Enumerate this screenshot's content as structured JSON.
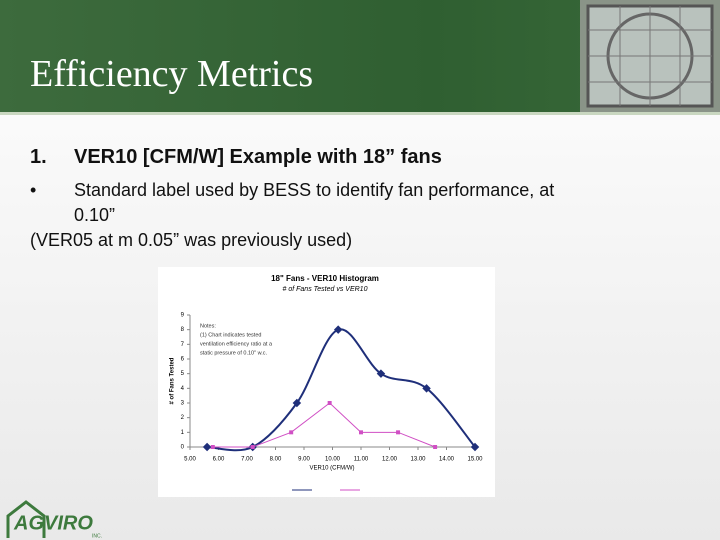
{
  "slide": {
    "title": "Efficiency Metrics",
    "items": [
      {
        "marker": "1.",
        "text": "VER10 [CFM/W] Example with 18” fans"
      },
      {
        "marker": "•",
        "text": "Standard label used by BESS to identify fan performance, at",
        "continuation": "0.10”"
      }
    ],
    "note": "(VER05 at m 0.05” was previously used)",
    "logo": {
      "name": "AGVIRO",
      "suffix": "INC."
    }
  },
  "chart_data": {
    "type": "line",
    "title": "18\" Fans - VER10 Histogram",
    "subtitle": "# of Fans Tested vs VER10",
    "x_label": "VER10 (CFM/W)",
    "y_label": "# of Fans Tested",
    "annotation": [
      "Notes:",
      "(1) Chart indicates tested",
      "ventilation efficiency ratio at a",
      "static pressure of 0.10\" w.c."
    ],
    "series": [
      {
        "color": "#1f2f7a",
        "smooth": true,
        "x": [
          5.6,
          7.2,
          8.75,
          10.2,
          11.7,
          13.3,
          15.0
        ],
        "values": [
          0,
          0,
          3,
          8,
          5,
          4,
          0
        ]
      },
      {
        "color": "#d04fc4",
        "smooth": false,
        "x": [
          5.8,
          7.2,
          8.55,
          9.9,
          11.0,
          12.3,
          13.6
        ],
        "values": [
          0,
          0,
          1,
          3,
          1,
          1,
          0
        ]
      }
    ],
    "xlim": [
      5,
      15
    ],
    "xticks": [
      {
        "value": 5,
        "label": "5.00"
      },
      {
        "value": 6,
        "label": "6.00"
      },
      {
        "value": 7,
        "label": "7.00"
      },
      {
        "value": 8,
        "label": "8.00"
      },
      {
        "value": 9,
        "label": "9.00"
      },
      {
        "value": 10,
        "label": "10.00"
      },
      {
        "value": 11,
        "label": "11.00"
      },
      {
        "value": 12,
        "label": "12.00"
      },
      {
        "value": 13,
        "label": "13.00"
      },
      {
        "value": 14,
        "label": "14.00"
      },
      {
        "value": 15,
        "label": "15.00"
      }
    ],
    "ylim": [
      0,
      9
    ],
    "yticks": [
      0,
      1,
      2,
      3,
      4,
      5,
      6,
      7,
      8,
      9
    ]
  }
}
